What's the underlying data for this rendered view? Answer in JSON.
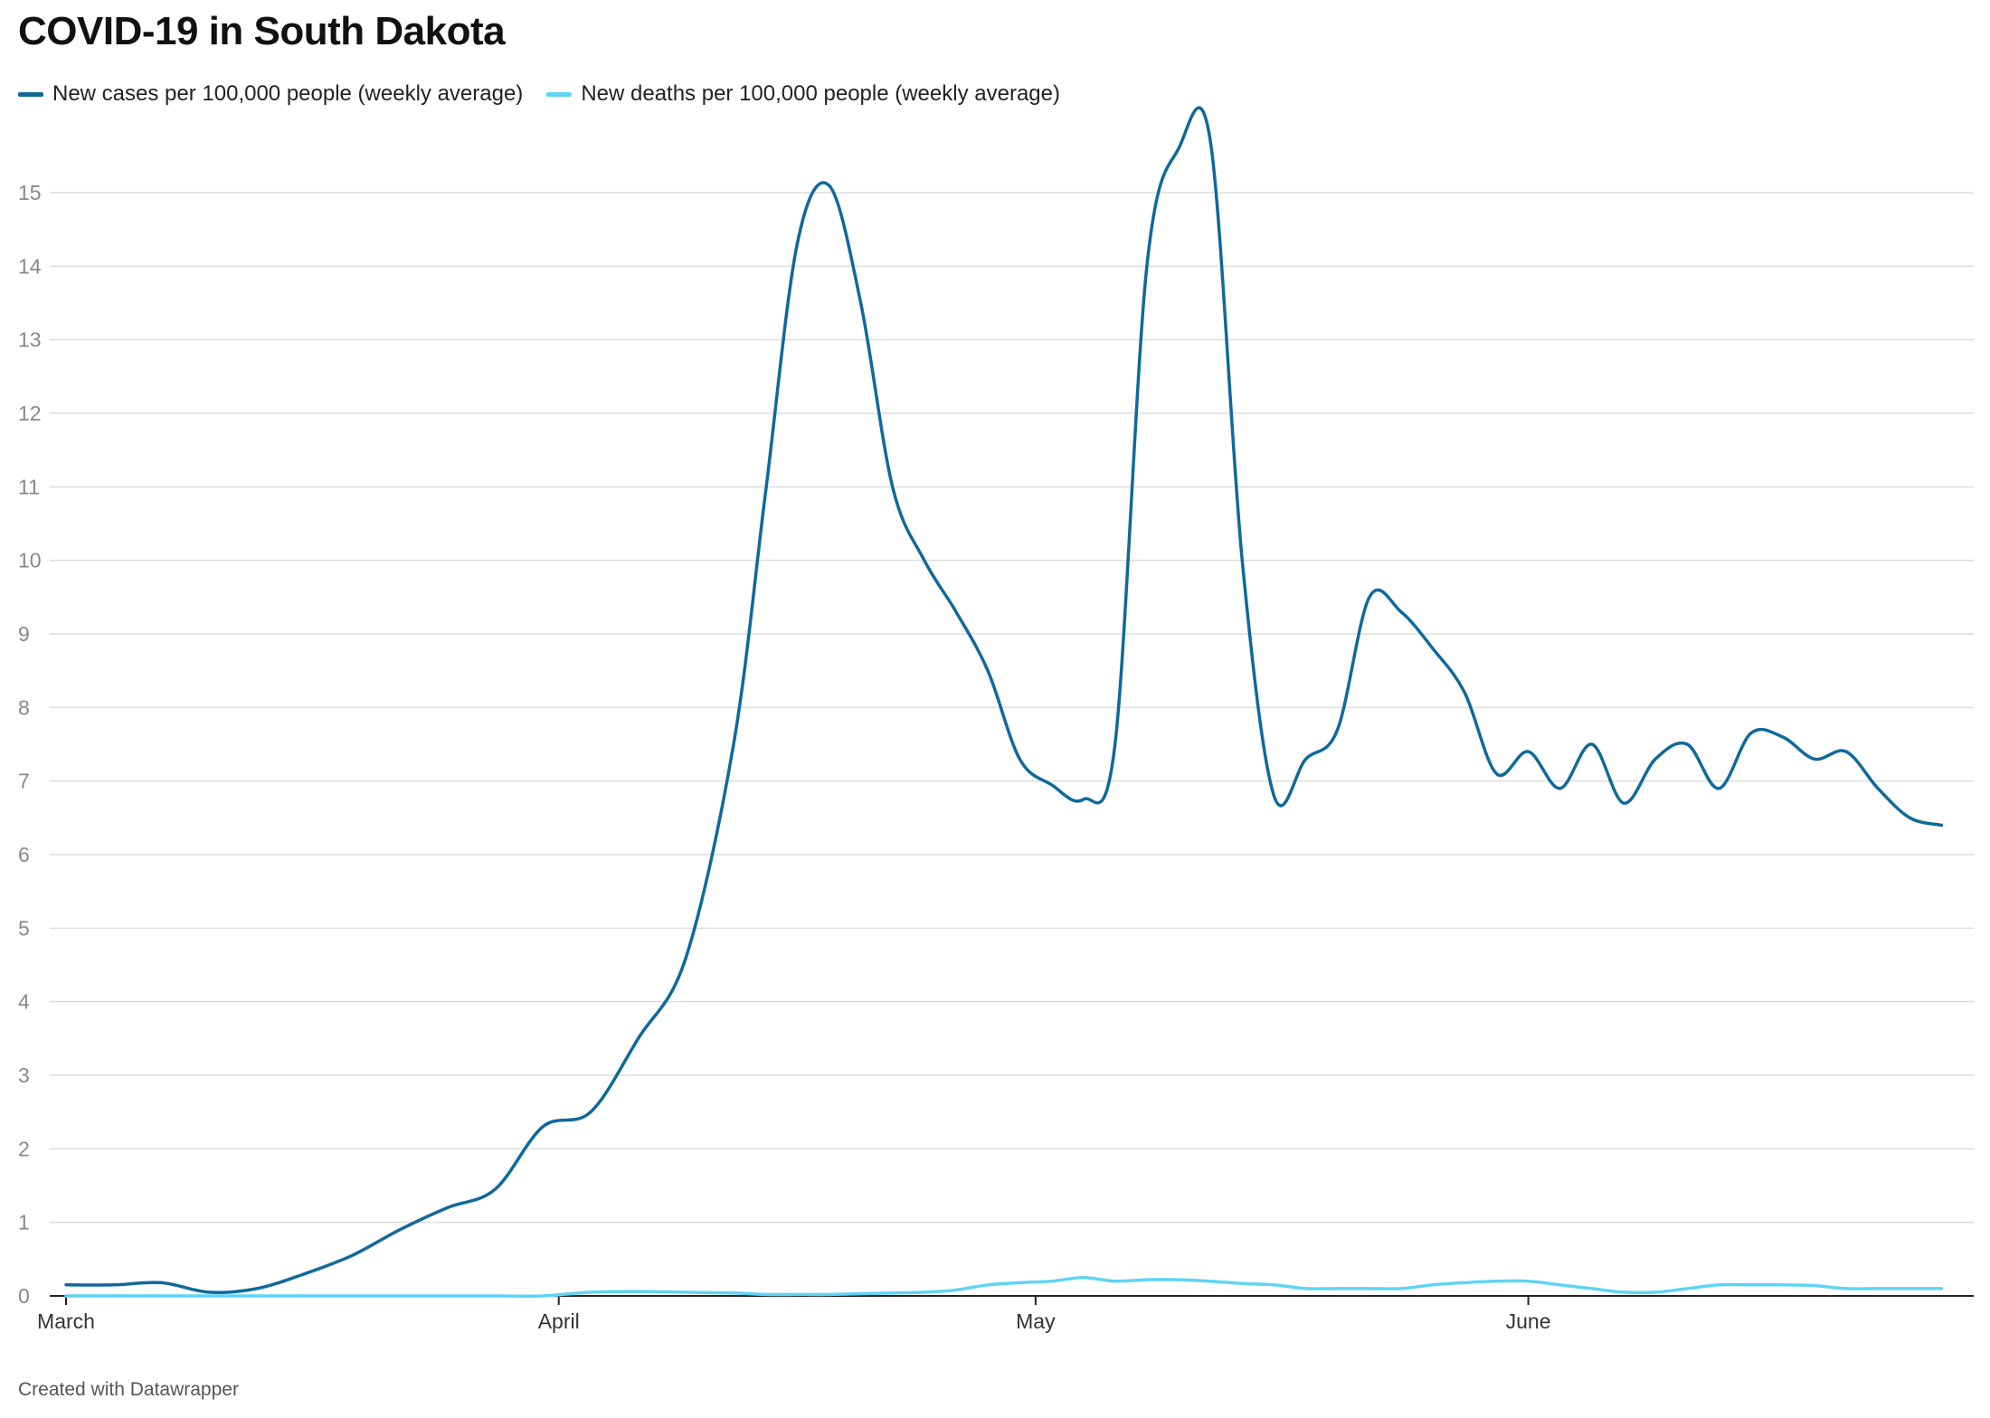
{
  "chart_data": {
    "type": "line",
    "title": "COVID-19 in South Dakota",
    "xlabel": "",
    "ylabel": "",
    "ylim": [
      0,
      15.5
    ],
    "yticks": [
      0,
      1,
      2,
      3,
      4,
      5,
      6,
      7,
      8,
      9,
      10,
      11,
      12,
      13,
      14,
      15
    ],
    "xticks": [
      "March",
      "April",
      "May",
      "June"
    ],
    "x_domain": [
      "2020-03-01",
      "2020-06-28"
    ],
    "x_tick_dates": [
      "2020-03-01",
      "2020-04-01",
      "2020-05-01",
      "2020-06-01"
    ],
    "grid": true,
    "legend_position": "top-left",
    "x": [
      "2020-03-01",
      "2020-03-04",
      "2020-03-07",
      "2020-03-10",
      "2020-03-13",
      "2020-03-16",
      "2020-03-19",
      "2020-03-22",
      "2020-03-25",
      "2020-03-28",
      "2020-03-31",
      "2020-04-03",
      "2020-04-06",
      "2020-04-09",
      "2020-04-12",
      "2020-04-14",
      "2020-04-16",
      "2020-04-18",
      "2020-04-20",
      "2020-04-22",
      "2020-04-24",
      "2020-04-26",
      "2020-04-28",
      "2020-04-30",
      "2020-05-02",
      "2020-05-04",
      "2020-05-06",
      "2020-05-08",
      "2020-05-10",
      "2020-05-12",
      "2020-05-14",
      "2020-05-16",
      "2020-05-18",
      "2020-05-20",
      "2020-05-22",
      "2020-05-24",
      "2020-05-26",
      "2020-05-28",
      "2020-05-30",
      "2020-06-01",
      "2020-06-03",
      "2020-06-05",
      "2020-06-07",
      "2020-06-09",
      "2020-06-11",
      "2020-06-13",
      "2020-06-15",
      "2020-06-17",
      "2020-06-19",
      "2020-06-21",
      "2020-06-23",
      "2020-06-25",
      "2020-06-27"
    ],
    "series": [
      {
        "name": "New cases per 100,000 people (weekly average)",
        "color": "#10699b",
        "values": [
          0.15,
          0.15,
          0.18,
          0.05,
          0.1,
          0.3,
          0.55,
          0.9,
          1.2,
          1.45,
          2.3,
          2.5,
          3.5,
          4.6,
          7.5,
          10.9,
          14.3,
          15.1,
          13.5,
          11,
          10,
          9.3,
          8.5,
          7.3,
          6.95,
          6.75,
          7.5,
          14,
          15.6,
          15.7,
          10,
          6.8,
          7.3,
          7.7,
          9.5,
          9.3,
          8.8,
          8.2,
          7.1,
          7.4,
          6.9,
          7.5,
          6.7,
          7.3,
          7.5,
          6.9,
          7.65,
          7.6,
          7.3,
          7.4,
          6.9,
          6.5,
          6.4
        ]
      },
      {
        "name": "New deaths per 100,000 people (weekly average)",
        "color": "#5fd4f4",
        "values": [
          0,
          0,
          0,
          0,
          0,
          0,
          0,
          0,
          0,
          0,
          0,
          0.05,
          0.06,
          0.05,
          0.04,
          0.02,
          0.02,
          0.02,
          0.03,
          0.04,
          0.05,
          0.08,
          0.15,
          0.18,
          0.2,
          0.25,
          0.2,
          0.22,
          0.22,
          0.2,
          0.17,
          0.15,
          0.1,
          0.1,
          0.1,
          0.1,
          0.15,
          0.18,
          0.2,
          0.2,
          0.15,
          0.1,
          0.05,
          0.05,
          0.1,
          0.15,
          0.15,
          0.15,
          0.14,
          0.1,
          0.1,
          0.1,
          0.1
        ]
      }
    ]
  },
  "footer": "Created with Datawrapper"
}
